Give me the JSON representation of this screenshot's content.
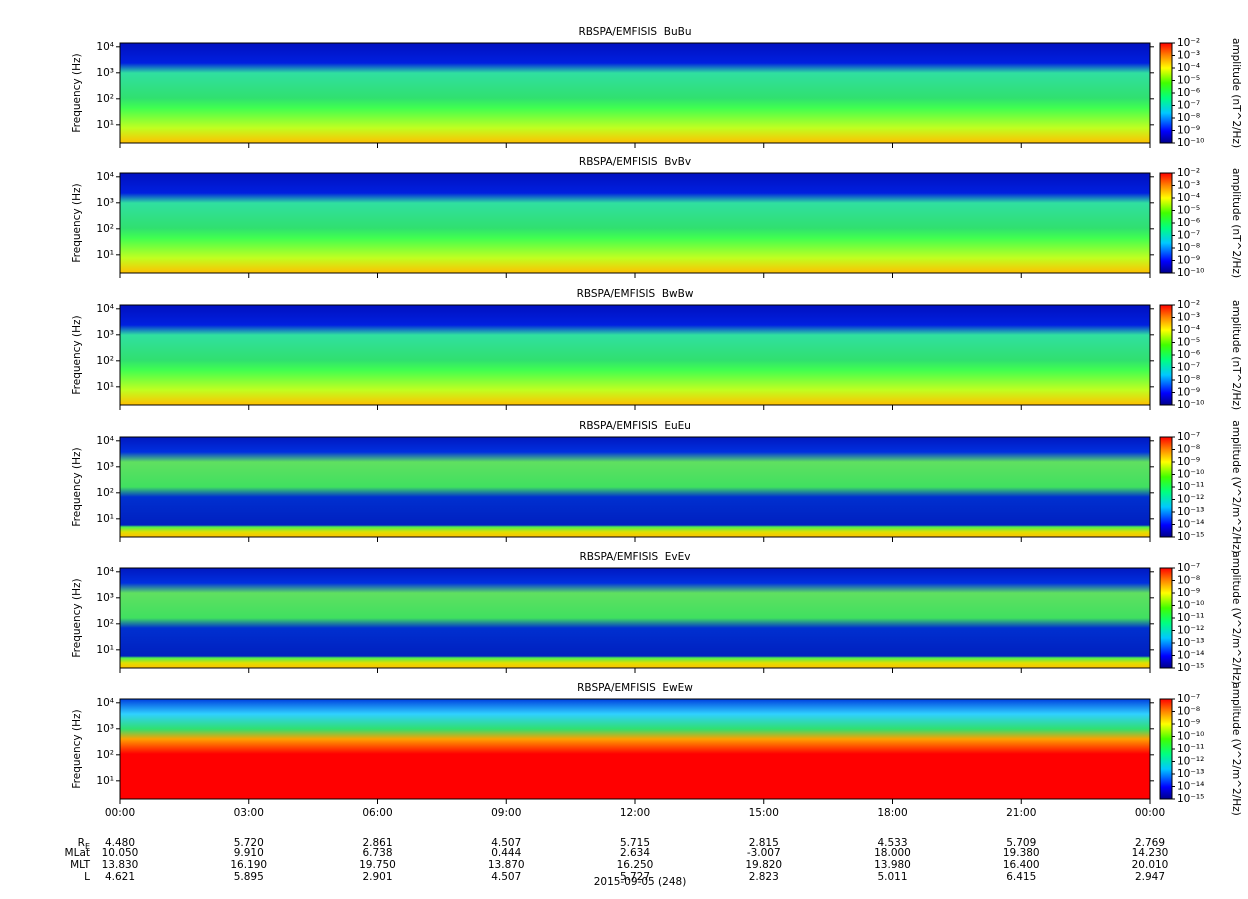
{
  "chart_data": [
    {
      "type": "spectrogram",
      "title": "RBSPA/EMFISIS  BuBu",
      "y_label": "Frequency (Hz)",
      "ylim": [
        2,
        14000
      ],
      "log_y": true,
      "yticks": [
        {
          "value": 10,
          "label": "10¹"
        },
        {
          "value": 100,
          "label": "10²"
        },
        {
          "value": 1000,
          "label": "10³"
        },
        {
          "value": 10000,
          "label": "10⁴"
        }
      ],
      "colorbar": {
        "label": "amplitude (nT^2/Hz)",
        "lim": [
          1e-10,
          0.01
        ],
        "log": true,
        "ticks": [
          {
            "value": 0.01,
            "label": "10⁻²"
          },
          {
            "value": 0.001,
            "label": "10⁻³"
          },
          {
            "value": 0.0001,
            "label": "10⁻⁴"
          },
          {
            "value": 1e-05,
            "label": "10⁻⁵"
          },
          {
            "value": 1e-06,
            "label": "10⁻⁶"
          },
          {
            "value": 1e-07,
            "label": "10⁻⁷"
          },
          {
            "value": 1e-08,
            "label": "10⁻⁸"
          },
          {
            "value": 1e-09,
            "label": "10⁻⁹"
          },
          {
            "value": 1e-10,
            "label": "10⁻¹⁰"
          }
        ]
      }
    },
    {
      "type": "spectrogram",
      "title": "RBSPA/EMFISIS  BvBv",
      "y_label": "Frequency (Hz)",
      "ylim": [
        2,
        14000
      ],
      "log_y": true,
      "yticks": [
        {
          "value": 10,
          "label": "10¹"
        },
        {
          "value": 100,
          "label": "10²"
        },
        {
          "value": 1000,
          "label": "10³"
        },
        {
          "value": 10000,
          "label": "10⁴"
        }
      ],
      "colorbar": {
        "label": "amplitude (nT^2/Hz)",
        "lim": [
          1e-10,
          0.01
        ],
        "log": true,
        "ticks": [
          {
            "value": 0.01,
            "label": "10⁻²"
          },
          {
            "value": 0.001,
            "label": "10⁻³"
          },
          {
            "value": 0.0001,
            "label": "10⁻⁴"
          },
          {
            "value": 1e-05,
            "label": "10⁻⁵"
          },
          {
            "value": 1e-06,
            "label": "10⁻⁶"
          },
          {
            "value": 1e-07,
            "label": "10⁻⁷"
          },
          {
            "value": 1e-08,
            "label": "10⁻⁸"
          },
          {
            "value": 1e-09,
            "label": "10⁻⁹"
          },
          {
            "value": 1e-10,
            "label": "10⁻¹⁰"
          }
        ]
      }
    },
    {
      "type": "spectrogram",
      "title": "RBSPA/EMFISIS  BwBw",
      "y_label": "Frequency (Hz)",
      "ylim": [
        2,
        14000
      ],
      "log_y": true,
      "yticks": [
        {
          "value": 10,
          "label": "10¹"
        },
        {
          "value": 100,
          "label": "10²"
        },
        {
          "value": 1000,
          "label": "10³"
        },
        {
          "value": 10000,
          "label": "10⁴"
        }
      ],
      "colorbar": {
        "label": "amplitude (nT^2/Hz)",
        "lim": [
          1e-10,
          0.01
        ],
        "log": true,
        "ticks": [
          {
            "value": 0.01,
            "label": "10⁻²"
          },
          {
            "value": 0.001,
            "label": "10⁻³"
          },
          {
            "value": 0.0001,
            "label": "10⁻⁴"
          },
          {
            "value": 1e-05,
            "label": "10⁻⁵"
          },
          {
            "value": 1e-06,
            "label": "10⁻⁶"
          },
          {
            "value": 1e-07,
            "label": "10⁻⁷"
          },
          {
            "value": 1e-08,
            "label": "10⁻⁸"
          },
          {
            "value": 1e-09,
            "label": "10⁻⁹"
          },
          {
            "value": 1e-10,
            "label": "10⁻¹⁰"
          }
        ]
      }
    },
    {
      "type": "spectrogram",
      "title": "RBSPA/EMFISIS  EuEu",
      "y_label": "Frequency (Hz)",
      "ylim": [
        2,
        14000
      ],
      "log_y": true,
      "yticks": [
        {
          "value": 10,
          "label": "10¹"
        },
        {
          "value": 100,
          "label": "10²"
        },
        {
          "value": 1000,
          "label": "10³"
        },
        {
          "value": 10000,
          "label": "10⁴"
        }
      ],
      "colorbar": {
        "label": "amplitude (V^2/m^2/Hz)",
        "lim": [
          1e-15,
          1e-07
        ],
        "log": true,
        "ticks": [
          {
            "value": 1e-07,
            "label": "10⁻⁷"
          },
          {
            "value": 1e-08,
            "label": "10⁻⁸"
          },
          {
            "value": 1e-09,
            "label": "10⁻⁹"
          },
          {
            "value": 1e-10,
            "label": "10⁻¹⁰"
          },
          {
            "value": 1e-11,
            "label": "10⁻¹¹"
          },
          {
            "value": 1e-12,
            "label": "10⁻¹²"
          },
          {
            "value": 1e-13,
            "label": "10⁻¹³"
          },
          {
            "value": 1e-14,
            "label": "10⁻¹⁴"
          },
          {
            "value": 1e-15,
            "label": "10⁻¹⁵"
          }
        ]
      }
    },
    {
      "type": "spectrogram",
      "title": "RBSPA/EMFISIS  EvEv",
      "y_label": "Frequency (Hz)",
      "ylim": [
        2,
        14000
      ],
      "log_y": true,
      "yticks": [
        {
          "value": 10,
          "label": "10¹"
        },
        {
          "value": 100,
          "label": "10²"
        },
        {
          "value": 1000,
          "label": "10³"
        },
        {
          "value": 10000,
          "label": "10⁴"
        }
      ],
      "colorbar": {
        "label": "amplitude (V^2/m^2/Hz)",
        "lim": [
          1e-15,
          1e-07
        ],
        "log": true,
        "ticks": [
          {
            "value": 1e-07,
            "label": "10⁻⁷"
          },
          {
            "value": 1e-08,
            "label": "10⁻⁸"
          },
          {
            "value": 1e-09,
            "label": "10⁻⁹"
          },
          {
            "value": 1e-10,
            "label": "10⁻¹⁰"
          },
          {
            "value": 1e-11,
            "label": "10⁻¹¹"
          },
          {
            "value": 1e-12,
            "label": "10⁻¹²"
          },
          {
            "value": 1e-13,
            "label": "10⁻¹³"
          },
          {
            "value": 1e-14,
            "label": "10⁻¹⁴"
          },
          {
            "value": 1e-15,
            "label": "10⁻¹⁵"
          }
        ]
      }
    },
    {
      "type": "spectrogram",
      "title": "RBSPA/EMFISIS  EwEw",
      "y_label": "Frequency (Hz)",
      "ylim": [
        2,
        14000
      ],
      "log_y": true,
      "yticks": [
        {
          "value": 10,
          "label": "10¹"
        },
        {
          "value": 100,
          "label": "10²"
        },
        {
          "value": 1000,
          "label": "10³"
        },
        {
          "value": 10000,
          "label": "10⁴"
        }
      ],
      "colorbar": {
        "label": "amplitude (V^2/m^2/Hz)",
        "lim": [
          1e-15,
          1e-07
        ],
        "log": true,
        "ticks": [
          {
            "value": 1e-07,
            "label": "10⁻⁷"
          },
          {
            "value": 1e-08,
            "label": "10⁻⁸"
          },
          {
            "value": 1e-09,
            "label": "10⁻⁹"
          },
          {
            "value": 1e-10,
            "label": "10⁻¹⁰"
          },
          {
            "value": 1e-11,
            "label": "10⁻¹¹"
          },
          {
            "value": 1e-12,
            "label": "10⁻¹²"
          },
          {
            "value": 1e-13,
            "label": "10⁻¹³"
          },
          {
            "value": 1e-14,
            "label": "10⁻¹⁴"
          },
          {
            "value": 1e-15,
            "label": "10⁻¹⁵"
          }
        ]
      }
    }
  ],
  "x_axis": {
    "xlim": [
      0,
      24
    ],
    "label": "2015-09-05 (248)",
    "xticks": [
      {
        "value": 0,
        "label": "00:00"
      },
      {
        "value": 3,
        "label": "03:00"
      },
      {
        "value": 6,
        "label": "06:00"
      },
      {
        "value": 9,
        "label": "09:00"
      },
      {
        "value": 12,
        "label": "12:00"
      },
      {
        "value": 15,
        "label": "15:00"
      },
      {
        "value": 18,
        "label": "18:00"
      },
      {
        "value": 21,
        "label": "21:00"
      },
      {
        "value": 24,
        "label": "00:00"
      }
    ]
  },
  "ephemeris": {
    "rows": [
      {
        "label": "R",
        "subscript": "E",
        "values": [
          "4.480",
          "5.720",
          "2.861",
          "4.507",
          "5.715",
          "2.815",
          "4.533",
          "5.709",
          "2.769"
        ]
      },
      {
        "label": "MLat",
        "values": [
          "10.050",
          "9.910",
          "6.738",
          "0.444",
          "2.634",
          "-3.007",
          "18.000",
          "19.380",
          "14.230"
        ]
      },
      {
        "label": "MLT",
        "values": [
          "13.830",
          "16.190",
          "19.750",
          "13.870",
          "16.250",
          "19.820",
          "13.980",
          "16.400",
          "20.010"
        ]
      },
      {
        "label": "L",
        "values": [
          "4.621",
          "5.895",
          "2.901",
          "4.507",
          "5.727",
          "2.823",
          "5.011",
          "6.415",
          "2.947"
        ]
      }
    ]
  }
}
